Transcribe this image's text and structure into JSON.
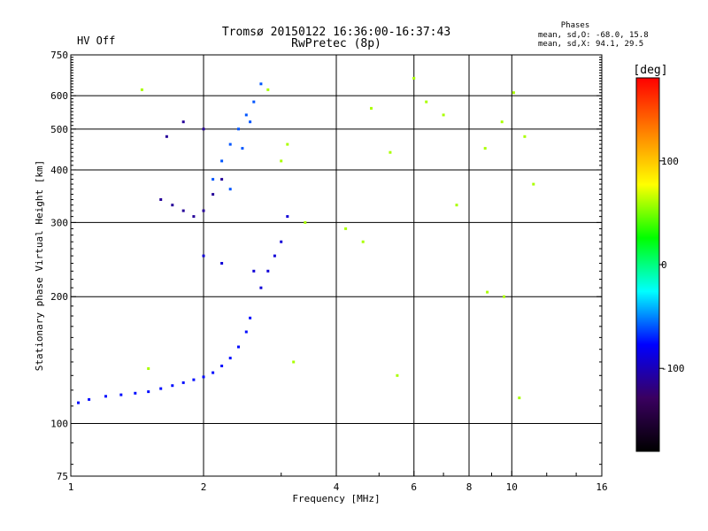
{
  "header": {
    "title_line1": "Tromsø 20150122 16:36:00-16:37:43",
    "title_line2": "RwPretec (8p)",
    "status": "HV Off",
    "status_color": "#cc0000",
    "stats_title": "Phases",
    "stats_o": "mean, sd,O:  -68.0, 15.8",
    "stats_x": "mean, sd,X:  94.1, 29.5"
  },
  "chart_data": {
    "type": "scatter",
    "xlabel": "Frequency [MHz]",
    "ylabel": "Stationary phase Virtual Height [km]",
    "x_scale": "log",
    "y_scale": "log",
    "xlim": [
      1,
      16
    ],
    "ylim": [
      75,
      750
    ],
    "x_ticks": [
      1,
      2,
      4,
      6,
      8,
      10,
      16
    ],
    "x_grid": [
      2,
      4,
      6,
      8,
      10
    ],
    "x_minor": [
      3,
      5,
      7,
      9,
      12,
      14
    ],
    "y_ticks": [
      75,
      100,
      200,
      300,
      400,
      500,
      600,
      750
    ],
    "y_grid": [
      100,
      200,
      300,
      400,
      500,
      600
    ],
    "grid": true,
    "colorbar": {
      "label": "[deg]",
      "min": -180,
      "max": 180,
      "ticks": [
        100,
        0,
        -100
      ],
      "stops": [
        "#000000",
        "#3a0060",
        "#0000ff",
        "#00ffff",
        "#00ff00",
        "#ffff00",
        "#ff8000",
        "#ff0000"
      ]
    },
    "point_groups": [
      {
        "name": "lower-trace",
        "x": [
          1.04,
          1.1,
          1.2,
          1.3,
          1.4,
          1.5,
          1.6,
          1.7,
          1.8,
          1.9,
          2.0,
          2.1,
          2.2,
          2.3,
          2.4,
          2.5,
          2.55
        ],
        "y": [
          112,
          114,
          116,
          117,
          118,
          119,
          121,
          123,
          125,
          127,
          129,
          132,
          137,
          143,
          152,
          165,
          178
        ],
        "phase": -75
      },
      {
        "name": "upper-cluster-blue",
        "x": [
          1.6,
          1.7,
          1.8,
          1.9,
          2.0,
          2.1,
          2.2,
          1.65,
          1.8,
          2.0
        ],
        "y": [
          340,
          330,
          320,
          310,
          320,
          350,
          380,
          480,
          520,
          500
        ],
        "phase": -110
      },
      {
        "name": "upper-cluster-cyan",
        "x": [
          2.1,
          2.2,
          2.3,
          2.4,
          2.5,
          2.6,
          2.7,
          2.3,
          2.45,
          2.55
        ],
        "y": [
          380,
          420,
          460,
          500,
          540,
          580,
          640,
          360,
          450,
          520
        ],
        "phase": -60
      },
      {
        "name": "mid-scatter",
        "x": [
          2.0,
          2.2,
          2.6,
          2.7,
          2.8,
          2.9,
          3.0,
          3.1
        ],
        "y": [
          250,
          240,
          230,
          210,
          230,
          250,
          270,
          310
        ],
        "phase": -90
      },
      {
        "name": "isolated",
        "x": [
          1.45,
          1.5,
          2.8,
          3.0,
          3.1,
          3.2,
          3.4,
          4.2,
          4.6,
          4.8,
          5.3,
          5.5,
          6.0,
          6.4,
          7.0,
          7.5,
          8.7,
          8.8,
          9.5,
          9.6,
          10.1,
          10.4,
          10.7,
          11.2
        ],
        "y": [
          620,
          135,
          620,
          420,
          460,
          140,
          300,
          290,
          270,
          560,
          440,
          130,
          660,
          580,
          540,
          330,
          450,
          205,
          520,
          200,
          610,
          115,
          480,
          370
        ],
        "phase": 60
      }
    ]
  }
}
